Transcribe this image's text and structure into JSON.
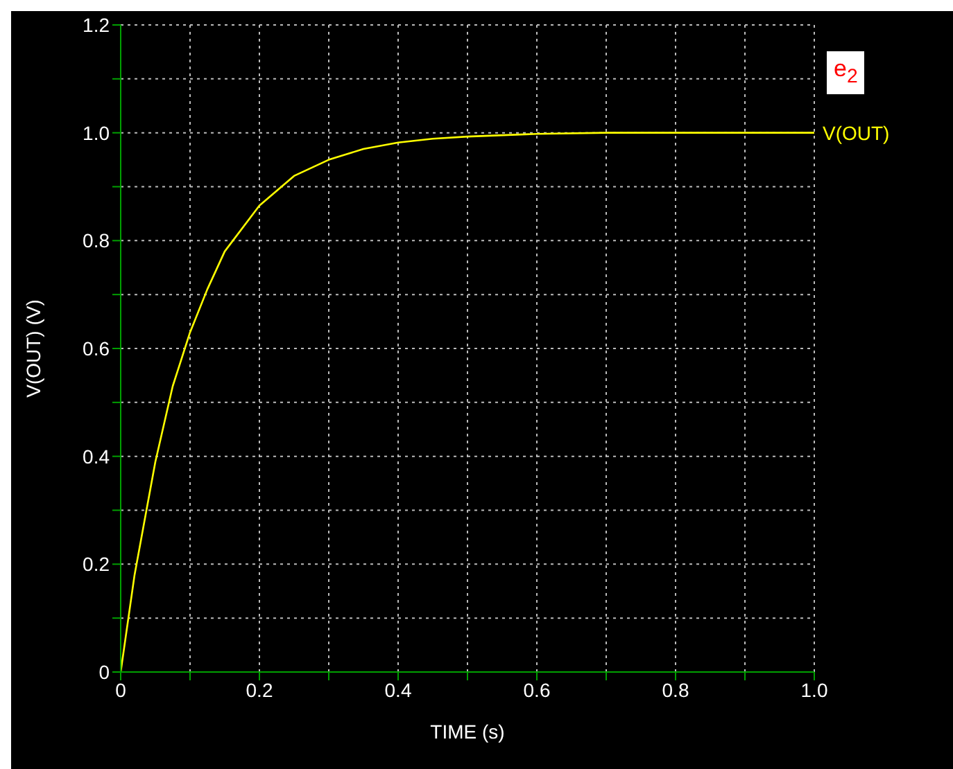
{
  "chart_data": {
    "type": "line",
    "xlabel": "TIME  (s)",
    "ylabel": "V(OUT)  (V)",
    "x": [
      0,
      0.02,
      0.05,
      0.075,
      0.1,
      0.125,
      0.15,
      0.2,
      0.25,
      0.3,
      0.35,
      0.4,
      0.45,
      0.5,
      0.6,
      0.7,
      0.8,
      1.0
    ],
    "series": [
      {
        "name": "V(OUT)",
        "color": "#ffff00",
        "values": [
          0,
          0.18,
          0.39,
          0.53,
          0.63,
          0.71,
          0.78,
          0.865,
          0.92,
          0.95,
          0.97,
          0.982,
          0.989,
          0.993,
          0.998,
          1.0,
          1.0,
          1.0
        ]
      }
    ],
    "xlim": [
      0,
      1.0
    ],
    "ylim": [
      0,
      1.2
    ],
    "xticks": [
      0,
      {
        "value": 0.1,
        "label": null
      },
      0.2,
      {
        "value": 0.3,
        "label": null
      },
      0.4,
      {
        "value": 0.5,
        "label": null
      },
      0.6,
      {
        "value": 0.7,
        "label": null
      },
      0.8,
      {
        "value": 0.9,
        "label": null
      },
      {
        "value": 1.0,
        "label": "1.0"
      }
    ],
    "yticks": [
      0,
      {
        "value": 0.1,
        "label": null
      },
      0.2,
      {
        "value": 0.3,
        "label": null
      },
      0.4,
      {
        "value": 0.5,
        "label": null
      },
      0.6,
      {
        "value": 0.7,
        "label": null
      },
      0.8,
      {
        "value": 0.9,
        "label": null
      },
      {
        "value": 1.0,
        "label": "1.0"
      },
      {
        "value": 1.1,
        "label": null
      },
      1.2
    ],
    "grid": true,
    "marker": "none",
    "line_style": "solid",
    "annotations": [
      "e$_{2}$"
    ]
  }
}
